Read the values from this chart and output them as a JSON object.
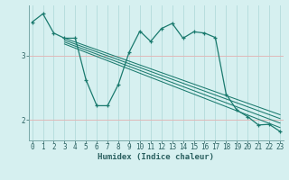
{
  "xlabel": "Humidex (Indice chaleur)",
  "background_color": "#d6f0f0",
  "grid_color_v": "#b8dede",
  "grid_color_h": "#e0b8b8",
  "line_color": "#1a7a6e",
  "x_ticks": [
    0,
    1,
    2,
    3,
    4,
    5,
    6,
    7,
    8,
    9,
    10,
    11,
    12,
    13,
    14,
    15,
    16,
    17,
    18,
    19,
    20,
    21,
    22,
    23
  ],
  "y_ticks": [
    2,
    3
  ],
  "ylim": [
    1.68,
    3.78
  ],
  "xlim": [
    -0.3,
    23.3
  ],
  "main_line_x": [
    0,
    1,
    2,
    3,
    4,
    5,
    6,
    7,
    8,
    9,
    10,
    11,
    12,
    13,
    14,
    15,
    16,
    17,
    18,
    19,
    20,
    21,
    22,
    23
  ],
  "main_line_y": [
    3.52,
    3.65,
    3.35,
    3.27,
    3.27,
    2.62,
    2.22,
    2.22,
    2.55,
    3.05,
    3.38,
    3.22,
    3.42,
    3.5,
    3.27,
    3.37,
    3.35,
    3.28,
    2.4,
    2.15,
    2.05,
    1.92,
    1.93,
    1.82
  ],
  "trend_lines": [
    {
      "x": [
        3,
        23
      ],
      "y": [
        3.27,
        2.08
      ]
    },
    {
      "x": [
        3,
        23
      ],
      "y": [
        3.24,
        2.02
      ]
    },
    {
      "x": [
        3,
        23
      ],
      "y": [
        3.21,
        1.95
      ]
    },
    {
      "x": [
        3,
        23
      ],
      "y": [
        3.18,
        1.88
      ]
    }
  ],
  "xlabel_fontsize": 6.5,
  "tick_fontsize": 5.5
}
